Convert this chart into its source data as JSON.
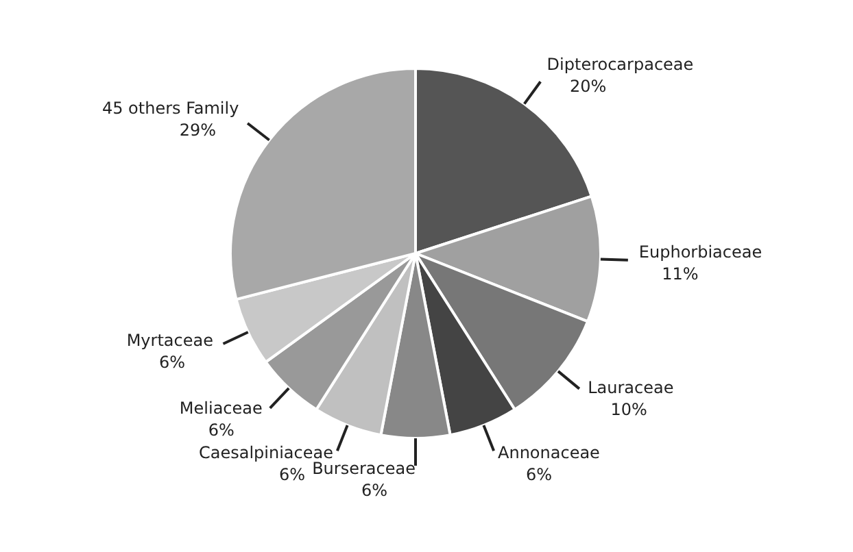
{
  "chart_data": {
    "type": "pie",
    "categories": [
      "Dipterocarpaceae",
      "Euphorbiaceae",
      "Lauraceae",
      "Annonaceae",
      "Burseraceae",
      "Caesalpiniaceae",
      "Meliaceae",
      "Myrtaceae",
      "45 others Family"
    ],
    "values": [
      20,
      11,
      10,
      6,
      6,
      6,
      6,
      6,
      29
    ],
    "value_labels": [
      "20%",
      "11%",
      "10%",
      "6%",
      "6%",
      "6%",
      "6%",
      "6%",
      "29%"
    ],
    "colors": [
      "#555555",
      "#a0a0a0",
      "#777777",
      "#444444",
      "#888888",
      "#c0c0c0",
      "#999999",
      "#c8c8c8",
      "#a8a8a8"
    ],
    "legend": false
  }
}
